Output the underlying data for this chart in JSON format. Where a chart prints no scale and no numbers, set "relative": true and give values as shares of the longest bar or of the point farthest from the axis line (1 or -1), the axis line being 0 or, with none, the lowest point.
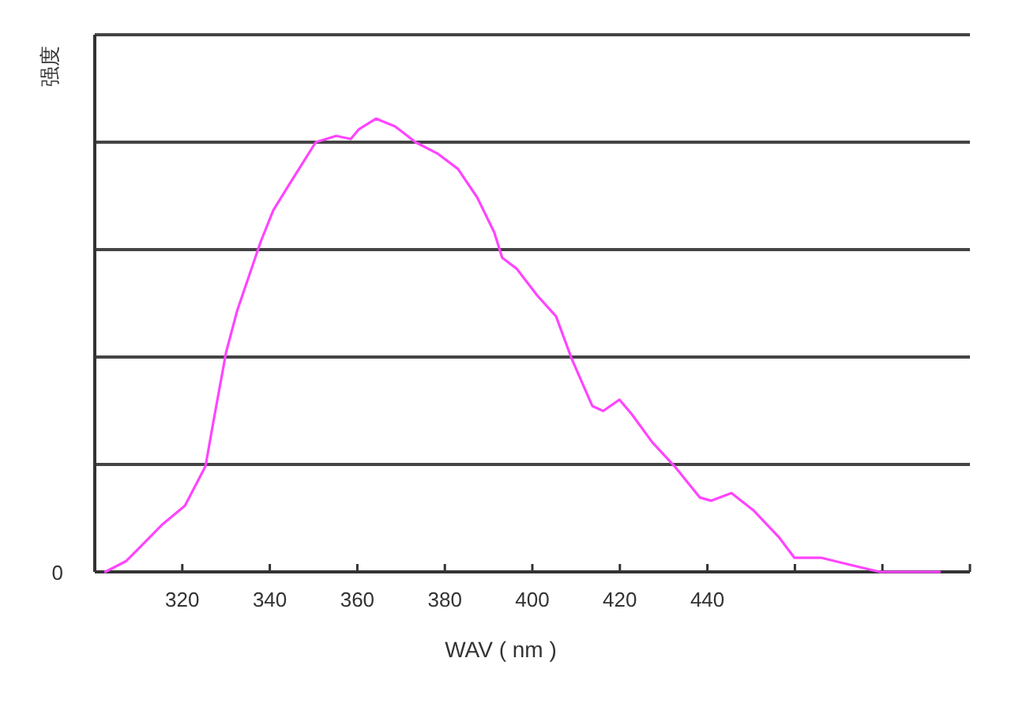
{
  "chart_data": {
    "type": "line",
    "xlabel": "WAV ( nm )",
    "ylabel": "强度",
    "relative": true,
    "xlim": [
      300,
      500
    ],
    "xticks": [
      320,
      340,
      360,
      380,
      400,
      420,
      440,
      {
        "value": 460,
        "label": null
      },
      {
        "value": 480,
        "label": null
      },
      {
        "value": 500,
        "label": null
      }
    ],
    "annotations": [
      "0"
    ],
    "grid": "y",
    "marker": "none",
    "line_style": "solid",
    "series": [
      {
        "color": "#ff44ff",
        "x": [
          302.4,
          307.2,
          310.8,
          315.5,
          320.6,
          325.3,
          327.1,
          330.0,
          332.5,
          337.9,
          340.8,
          344.4,
          350.5,
          355.2,
          358.5,
          360.3,
          364.3,
          368.6,
          373.3,
          378.3,
          383.0,
          387.4,
          391.3,
          393.1,
          396.4,
          401.1,
          405.4,
          409.0,
          413.7,
          416.2,
          419.9,
          422.7,
          427.4,
          432.5,
          438.3,
          440.8,
          445.5,
          450.5,
          456.3,
          459.9,
          466.1,
          473.3,
          479.4,
          483.0,
          493.1
        ],
        "values": [
          0,
          0.024,
          0.059,
          0.105,
          0.146,
          0.233,
          0.331,
          0.484,
          0.575,
          0.728,
          0.798,
          0.854,
          0.948,
          0.962,
          0.955,
          0.976,
          1,
          0.983,
          0.948,
          0.923,
          0.889,
          0.826,
          0.749,
          0.693,
          0.669,
          0.61,
          0.564,
          0.47,
          0.366,
          0.355,
          0.38,
          0.348,
          0.286,
          0.233,
          0.164,
          0.157,
          0.174,
          0.136,
          0.077,
          0.031,
          0.031,
          0.014,
          0,
          0,
          0
        ]
      }
    ]
  }
}
